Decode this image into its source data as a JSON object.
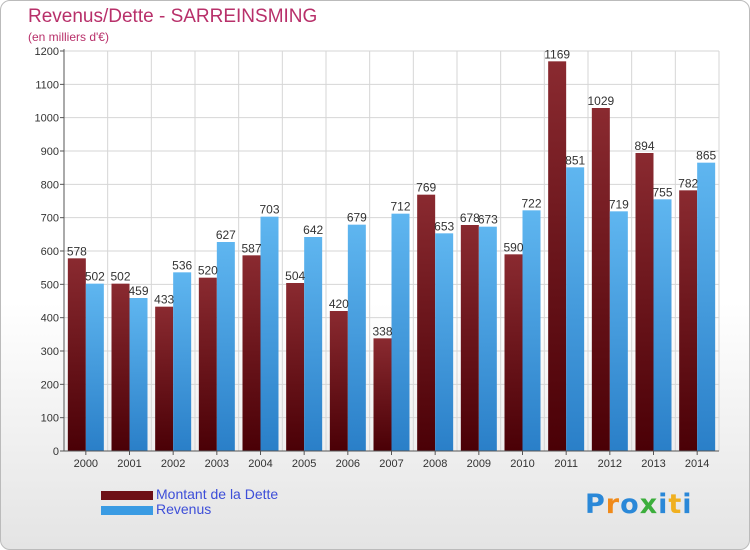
{
  "header": {
    "title": "Revenus/Dette - SARREINSMING",
    "subtitle": "(en milliers d'€)"
  },
  "legend": {
    "items": [
      {
        "label": "Montant de la Dette",
        "color": "#6e1016"
      },
      {
        "label": "Revenus",
        "color": "#3a9be3"
      }
    ]
  },
  "brand": {
    "logo_text": "Proxiti",
    "logo_colors": [
      "#2a88d8",
      "#f08a1a",
      "#2a88d8",
      "#3cae3c",
      "#2a88d8",
      "#f0b020",
      "#2a88d8"
    ]
  },
  "chart_data": {
    "type": "bar",
    "categories": [
      "2000",
      "2001",
      "2002",
      "2003",
      "2004",
      "2005",
      "2006",
      "2007",
      "2008",
      "2009",
      "2010",
      "2011",
      "2012",
      "2013",
      "2014"
    ],
    "series": [
      {
        "name": "Montant de la Dette",
        "color": "#6e1016",
        "values": [
          578,
          502,
          433,
          520,
          587,
          504,
          420,
          338,
          769,
          678,
          590,
          1169,
          1029,
          894,
          782
        ]
      },
      {
        "name": "Revenus",
        "color": "#3a9be3",
        "values": [
          502,
          459,
          536,
          627,
          703,
          642,
          679,
          712,
          653,
          673,
          722,
          851,
          719,
          755,
          865
        ]
      }
    ],
    "ylim": [
      0,
      1200
    ],
    "yticks": [
      0,
      100,
      200,
      300,
      400,
      500,
      600,
      700,
      800,
      900,
      1000,
      1100,
      1200
    ],
    "grid": true,
    "legend_position": "bottom-left"
  }
}
